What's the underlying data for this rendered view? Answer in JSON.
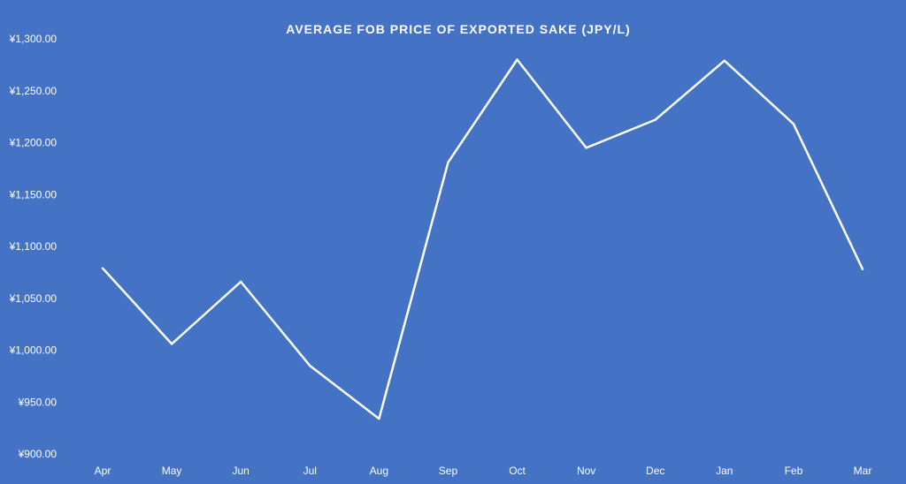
{
  "colors": {
    "background": "#4472C4",
    "line": "#FFFFFF",
    "text": "#FFFFFF"
  },
  "chart_data": {
    "type": "line",
    "title": "AVERAGE FOB PRICE OF EXPORTED SAKE  (JPY/L)",
    "xlabel": "",
    "ylabel": "",
    "categories": [
      "Apr",
      "May",
      "Jun",
      "Jul",
      "Aug",
      "Sep",
      "Oct",
      "Nov",
      "Dec",
      "Jan",
      "Feb",
      "Mar"
    ],
    "series": [
      {
        "values": [
          1079,
          1006,
          1066,
          985,
          934,
          1181,
          1280,
          1195,
          1222,
          1279,
          1218,
          1078
        ]
      }
    ],
    "y_ticks": [
      "¥900.00",
      "¥950.00",
      "¥1,000.00",
      "¥1,050.00",
      "¥1,100.00",
      "¥1,150.00",
      "¥1,200.00",
      "¥1,250.00",
      "¥1,300.00"
    ],
    "ylim": [
      900,
      1300
    ],
    "drop_lines": true,
    "grid": false,
    "legend": "none"
  }
}
